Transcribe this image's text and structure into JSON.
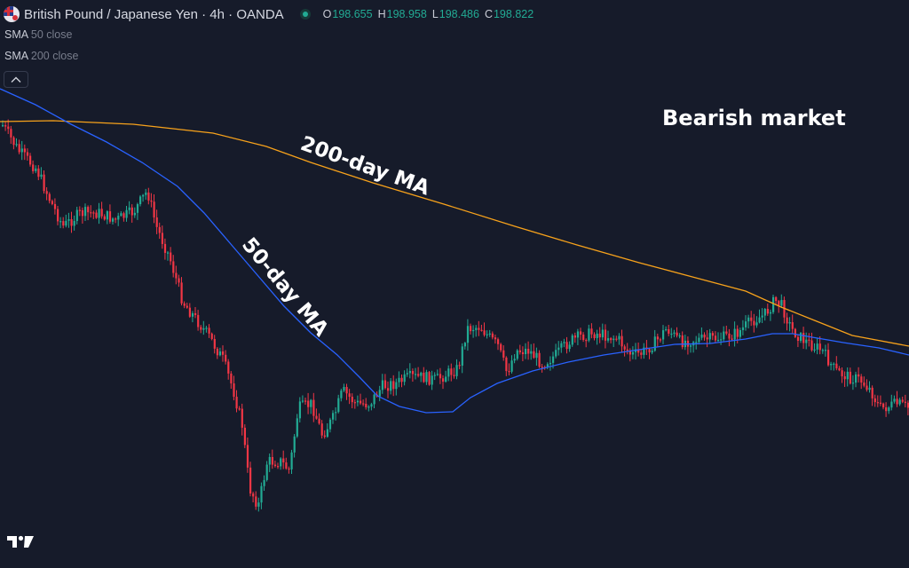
{
  "header": {
    "title": "British Pound / Japanese Yen · 4h · OANDA",
    "ohlc": [
      {
        "key": "O",
        "value": "198.655"
      },
      {
        "key": "H",
        "value": "198.958"
      },
      {
        "key": "L",
        "value": "198.486"
      },
      {
        "key": "C",
        "value": "198.822"
      }
    ],
    "market_status": "open"
  },
  "indicators": [
    {
      "name": "SMA",
      "params": "50 close"
    },
    {
      "name": "SMA",
      "params": "200 close"
    }
  ],
  "collapse_icon": "chevron-up-icon",
  "annotations": {
    "trend": "Bearish market",
    "sma200": "200-day MA",
    "sma50": "50-day MA"
  },
  "logo": "tradingview-logo",
  "colors": {
    "background": "#161b2a",
    "up": "#22ab94",
    "down": "#f23645",
    "sma50": "#2962ff",
    "sma200": "#f7a21b"
  }
}
